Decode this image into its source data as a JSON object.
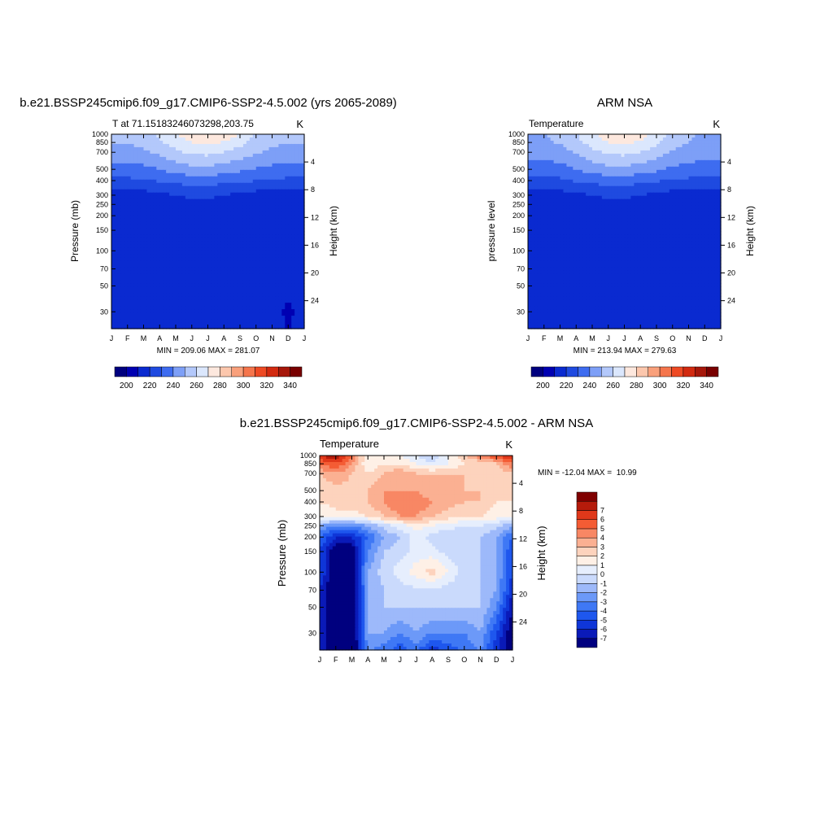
{
  "colors": {
    "palette_temp": [
      "#00007f",
      "#0000b2",
      "#0a2ad0",
      "#1f4ae0",
      "#3e6cf0",
      "#7d9ff7",
      "#b3c8fb",
      "#dbe7fd",
      "#fde8de",
      "#fcc7ad",
      "#f9a07b",
      "#f5754c",
      "#ee4a24",
      "#d22a10",
      "#a6170a",
      "#790000"
    ],
    "palette_diff": [
      "#00007f",
      "#0a1ab8",
      "#0f36d8",
      "#1e57ee",
      "#3f78f5",
      "#6c99f8",
      "#9db9fa",
      "#cadafc",
      "#e6eefd",
      "#fef0e6",
      "#fdd3bd",
      "#fbb092",
      "#f88764",
      "#f45c34",
      "#e0381a",
      "#b51b0b",
      "#7f0000"
    ]
  },
  "panels": {
    "model": {
      "title": "b.e21.BSSP245cmip6.f09_g17.CMIP6-SSP2-4.5.002 (yrs 2065-2089)",
      "left_label": "T at 71.15183246073298,203.75",
      "units": "K",
      "ylabel": "Pressure (mb)",
      "y2label": "Height (km)",
      "minmax": "MIN = 209.06 MAX = 281.07"
    },
    "obs": {
      "title": "ARM NSA",
      "left_label": "Temperature",
      "units": "K",
      "ylabel": "pressure level",
      "y2label": "Height (km)",
      "minmax": "MIN = 213.94 MAX = 279.63"
    },
    "diff": {
      "title": "b.e21.BSSP245cmip6.f09_g17.CMIP6-SSP2-4.5.002 - ARM NSA",
      "left_label": "Temperature",
      "units": "K",
      "ylabel": "Pressure (mb)",
      "y2label": "Height (km)",
      "minmax": "MIN = -12.04 MAX =  10.99"
    }
  },
  "chart_data": [
    {
      "type": "heatmap",
      "name": "model",
      "title": "b.e21.BSSP245cmip6.f09_g17.CMIP6-SSP2-4.5.002 (yrs 2065-2089)",
      "xlabel": "",
      "ylabel": "Pressure (mb)",
      "y2label": "Height (km)",
      "x_ticks": [
        "J",
        "F",
        "M",
        "A",
        "M",
        "J",
        "J",
        "A",
        "S",
        "O",
        "N",
        "D",
        "J"
      ],
      "y_ticks": [
        30,
        50,
        70,
        100,
        150,
        200,
        250,
        300,
        400,
        500,
        700,
        850,
        1000
      ],
      "y2_ticks": [
        4,
        8,
        12,
        16,
        20,
        24
      ],
      "ylim": [
        1000,
        20
      ],
      "y_scale": "log",
      "x": [
        0,
        1,
        2,
        3,
        4,
        5,
        6,
        7,
        8,
        9,
        10,
        11,
        12
      ],
      "y": [
        20,
        30,
        50,
        70,
        100,
        150,
        200,
        250,
        300,
        400,
        500,
        700,
        850,
        1000
      ],
      "z": [
        [
          212,
          212,
          215,
          215,
          215,
          215,
          214,
          214,
          212,
          212,
          212,
          210,
          212
        ],
        [
          212,
          212,
          215,
          216,
          216,
          216,
          215,
          215,
          214,
          212,
          212,
          209,
          212
        ],
        [
          212,
          212,
          215,
          216,
          216,
          216,
          216,
          216,
          214,
          213,
          212,
          211,
          212
        ],
        [
          212,
          212,
          215,
          216,
          217,
          217,
          217,
          217,
          216,
          213,
          212,
          212,
          212
        ],
        [
          212,
          212,
          215,
          216,
          217,
          217,
          217,
          217,
          217,
          214,
          213,
          212,
          212
        ],
        [
          212,
          213,
          215,
          216,
          217,
          217,
          217,
          217,
          216,
          214,
          212,
          212,
          212
        ],
        [
          212,
          213,
          213,
          216,
          217,
          217,
          217,
          216,
          214,
          212,
          212,
          212,
          212
        ],
        [
          212,
          212,
          212,
          213,
          215,
          217,
          217,
          214,
          212,
          212,
          212,
          212,
          212
        ],
        [
          215,
          215,
          216,
          218,
          220,
          222,
          222,
          220,
          218,
          216,
          215,
          215,
          215
        ],
        [
          228,
          228,
          229,
          231,
          233,
          234,
          234,
          233,
          232,
          230,
          229,
          228,
          228
        ],
        [
          236,
          236,
          237,
          240,
          244,
          247,
          247,
          245,
          242,
          239,
          237,
          236,
          236
        ],
        [
          246,
          246,
          248,
          252,
          258,
          262,
          263,
          260,
          256,
          251,
          248,
          246,
          246
        ],
        [
          250,
          250,
          253,
          258,
          265,
          270,
          272,
          269,
          263,
          256,
          252,
          250,
          250
        ],
        [
          252,
          253,
          255,
          262,
          269,
          276,
          281,
          277,
          269,
          259,
          253,
          251,
          252
        ]
      ],
      "levels": [
        200,
        210,
        220,
        230,
        240,
        250,
        260,
        270,
        280,
        290,
        300,
        310,
        320,
        330,
        340
      ],
      "colorbar_ticks": [
        200,
        220,
        240,
        260,
        280,
        300,
        320,
        340
      ],
      "min": 209.06,
      "max": 281.07
    },
    {
      "type": "heatmap",
      "name": "obs",
      "title": "ARM NSA",
      "xlabel": "",
      "ylabel": "pressure level",
      "y2label": "Height (km)",
      "x_ticks": [
        "J",
        "F",
        "M",
        "A",
        "M",
        "J",
        "J",
        "A",
        "S",
        "O",
        "N",
        "D",
        "J"
      ],
      "y_ticks": [
        30,
        50,
        70,
        100,
        150,
        200,
        250,
        300,
        400,
        500,
        700,
        850,
        1000
      ],
      "y2_ticks": [
        4,
        8,
        12,
        16,
        20,
        24
      ],
      "ylim": [
        1000,
        20
      ],
      "y_scale": "log",
      "x": [
        0,
        1,
        2,
        3,
        4,
        5,
        6,
        7,
        8,
        9,
        10,
        11,
        12
      ],
      "y": [
        20,
        30,
        50,
        70,
        100,
        150,
        200,
        250,
        300,
        400,
        500,
        700,
        850,
        1000
      ],
      "z": [
        [
          216,
          216,
          216,
          216,
          216,
          217,
          218,
          217,
          216,
          216,
          216,
          216,
          216
        ],
        [
          216,
          216,
          216,
          216,
          216,
          217,
          216,
          216,
          216,
          216,
          216,
          216,
          216
        ],
        [
          216,
          216,
          216,
          216,
          216,
          216,
          216,
          216,
          216,
          216,
          216,
          216,
          216
        ],
        [
          216,
          216,
          216,
          216,
          216,
          216,
          216,
          216,
          216,
          216,
          216,
          216,
          216
        ],
        [
          216,
          216,
          216,
          216,
          216,
          216,
          216,
          216,
          216,
          216,
          216,
          216,
          216
        ],
        [
          216,
          216,
          216,
          216,
          216,
          216,
          216,
          216,
          216,
          216,
          216,
          216,
          216
        ],
        [
          215,
          215,
          215,
          216,
          216,
          216,
          216,
          216,
          216,
          215,
          214,
          214,
          215
        ],
        [
          214,
          214,
          214,
          215,
          216,
          216,
          216,
          216,
          214,
          213,
          213,
          213,
          214
        ],
        [
          216,
          216,
          216,
          218,
          220,
          222,
          222,
          220,
          218,
          216,
          216,
          216,
          216
        ],
        [
          227,
          227,
          228,
          231,
          233,
          234,
          234,
          233,
          231,
          229,
          228,
          227,
          227
        ],
        [
          235,
          235,
          236,
          240,
          244,
          247,
          247,
          245,
          242,
          238,
          236,
          235,
          235
        ],
        [
          244,
          244,
          246,
          251,
          257,
          262,
          263,
          260,
          255,
          249,
          246,
          244,
          244
        ],
        [
          248,
          248,
          251,
          257,
          264,
          270,
          272,
          268,
          262,
          254,
          250,
          248,
          248
        ],
        [
          250,
          250,
          252,
          259,
          267,
          276,
          279,
          275,
          266,
          256,
          251,
          249,
          250
        ]
      ],
      "levels": [
        200,
        210,
        220,
        230,
        240,
        250,
        260,
        270,
        280,
        290,
        300,
        310,
        320,
        330,
        340
      ],
      "colorbar_ticks": [
        200,
        220,
        240,
        260,
        280,
        300,
        320,
        340
      ],
      "min": 213.94,
      "max": 279.63
    },
    {
      "type": "heatmap",
      "name": "diff",
      "title": "b.e21.BSSP245cmip6.f09_g17.CMIP6-SSP2-4.5.002 - ARM NSA",
      "xlabel": "",
      "ylabel": "Pressure (mb)",
      "y2label": "Height (km)",
      "x_ticks": [
        "J",
        "F",
        "M",
        "A",
        "M",
        "J",
        "J",
        "A",
        "S",
        "O",
        "N",
        "D",
        "J"
      ],
      "y_ticks": [
        30,
        50,
        70,
        100,
        150,
        200,
        250,
        300,
        400,
        500,
        700,
        850,
        1000
      ],
      "y2_ticks": [
        4,
        8,
        12,
        16,
        20,
        24
      ],
      "ylim": [
        1000,
        20
      ],
      "y_scale": "log",
      "x": [
        0,
        1,
        2,
        3,
        4,
        5,
        6,
        7,
        8,
        9,
        10,
        11,
        12
      ],
      "y": [
        20,
        30,
        50,
        70,
        100,
        150,
        200,
        250,
        300,
        400,
        500,
        700,
        850,
        1000
      ],
      "z": [
        [
          -6,
          -9,
          -9,
          -3,
          -4,
          -5,
          -4,
          -6,
          -5,
          -4,
          -3,
          -6,
          -8
        ],
        [
          -6,
          -9,
          -9,
          -2,
          -2,
          -3,
          -2,
          -3,
          -3,
          -3,
          -2,
          -5,
          -8
        ],
        [
          -6,
          -9,
          -9,
          -2,
          -1,
          -1,
          -1,
          -1,
          -1,
          -1,
          -1,
          -3,
          -7
        ],
        [
          -6,
          -9,
          -9,
          -2,
          -1,
          -0.5,
          -0.3,
          -0.3,
          -0.5,
          -1,
          -1,
          -2,
          -6
        ],
        [
          -5,
          -8,
          -8,
          -2,
          -0.5,
          0.5,
          1.5,
          2.5,
          1,
          -0.5,
          -1,
          -2,
          -5
        ],
        [
          -5,
          -8,
          -8,
          -3,
          -1,
          -0.5,
          0.5,
          0.5,
          -0.5,
          -1,
          -1,
          -2,
          -5
        ],
        [
          -4,
          -6,
          -6,
          -4,
          -2,
          -1,
          0.5,
          -0.5,
          -1,
          -1,
          -1,
          -2,
          -4
        ],
        [
          -2,
          -3,
          -3,
          -2,
          -0.5,
          0.5,
          1.5,
          1,
          0.5,
          0,
          0,
          -0.5,
          -2
        ],
        [
          1,
          1.5,
          1.5,
          2,
          3,
          4,
          4,
          3,
          2.5,
          2,
          2,
          1.5,
          1
        ],
        [
          2,
          2.5,
          2.5,
          3,
          4,
          5,
          5,
          4,
          3.5,
          3,
          3,
          2,
          2
        ],
        [
          2,
          2.5,
          2.5,
          3,
          4,
          4,
          4,
          3,
          3,
          3,
          3,
          2,
          2
        ],
        [
          3,
          4,
          3,
          2,
          3,
          4,
          3,
          3,
          3,
          3,
          2,
          2,
          3
        ],
        [
          5,
          6,
          4,
          1,
          2,
          2,
          1,
          0,
          1,
          2,
          2,
          3,
          5
        ],
        [
          7,
          8,
          5,
          1,
          1,
          1,
          0,
          -1,
          1,
          3,
          5,
          6,
          7
        ]
      ],
      "levels": [
        -7,
        -6,
        -5,
        -4,
        -3,
        -2,
        -1,
        0,
        1,
        2,
        3,
        4,
        5,
        6,
        7
      ],
      "colorbar_ticks": [
        -7,
        -6,
        -5,
        -4,
        -3,
        -2,
        -1,
        0,
        1,
        2,
        3,
        4,
        5,
        6,
        7
      ],
      "min": -12.04,
      "max": 10.99
    }
  ]
}
